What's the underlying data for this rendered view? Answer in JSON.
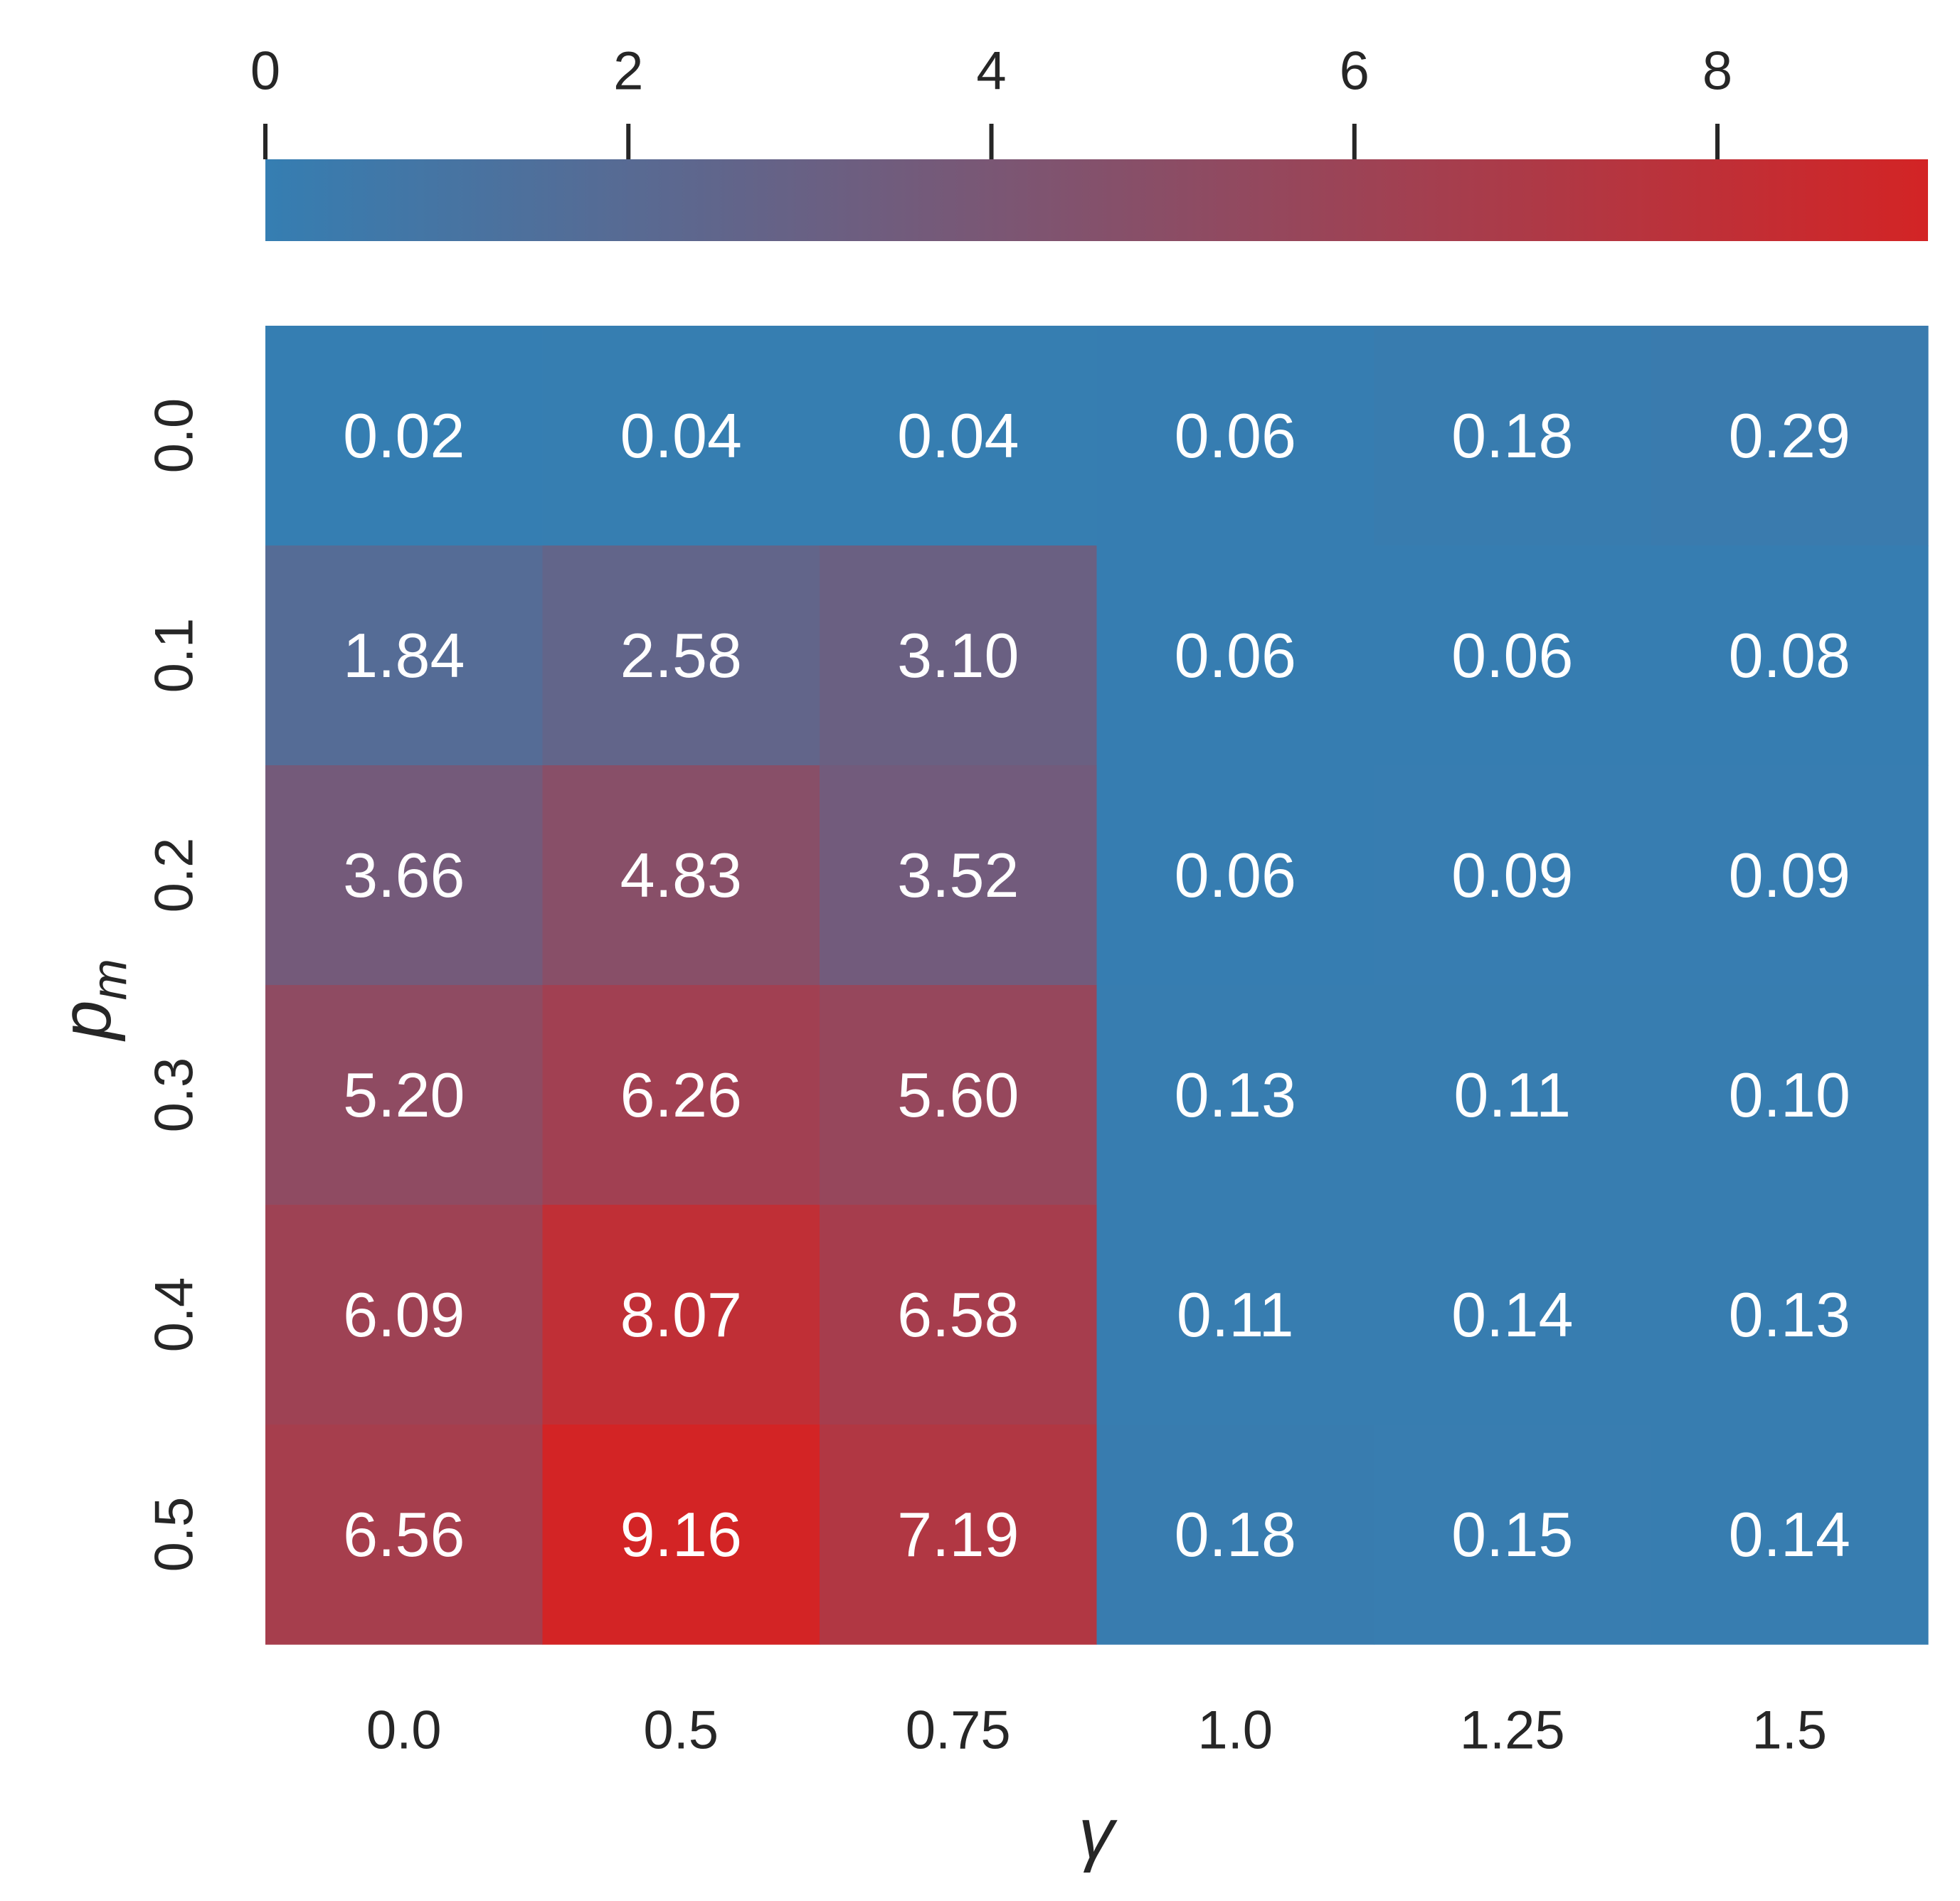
{
  "chart_data": {
    "type": "heatmap",
    "title": "",
    "xlabel": "γ",
    "ylabel_main": "p",
    "ylabel_sub": "m",
    "x_categories": [
      "0.0",
      "0.5",
      "0.75",
      "1.0",
      "1.25",
      "1.5"
    ],
    "y_categories": [
      "0.0",
      "0.1",
      "0.2",
      "0.3",
      "0.4",
      "0.5"
    ],
    "values": [
      [
        0.02,
        0.04,
        0.04,
        0.06,
        0.18,
        0.29
      ],
      [
        1.84,
        2.58,
        3.1,
        0.06,
        0.06,
        0.08
      ],
      [
        3.66,
        4.83,
        3.52,
        0.06,
        0.09,
        0.09
      ],
      [
        5.2,
        6.26,
        5.6,
        0.13,
        0.11,
        0.1
      ],
      [
        6.09,
        8.07,
        6.58,
        0.11,
        0.14,
        0.13
      ],
      [
        6.56,
        9.16,
        7.19,
        0.18,
        0.15,
        0.14
      ]
    ],
    "value_labels": [
      [
        "0.02",
        "0.04",
        "0.04",
        "0.06",
        "0.18",
        "0.29"
      ],
      [
        "1.84",
        "2.58",
        "3.10",
        "0.06",
        "0.06",
        "0.08"
      ],
      [
        "3.66",
        "4.83",
        "3.52",
        "0.06",
        "0.09",
        "0.09"
      ],
      [
        "5.20",
        "6.26",
        "5.60",
        "0.13",
        "0.11",
        "0.10"
      ],
      [
        "6.09",
        "8.07",
        "6.58",
        "0.11",
        "0.14",
        "0.13"
      ],
      [
        "6.56",
        "9.16",
        "7.19",
        "0.18",
        "0.15",
        "0.14"
      ]
    ],
    "colorbar": {
      "position": "top",
      "range": [
        0,
        9.16
      ],
      "ticks": [
        0,
        2,
        4,
        6,
        8
      ],
      "tick_labels": [
        "0",
        "2",
        "4",
        "6",
        "8"
      ],
      "color_low": "#357EB2",
      "color_high": "#D32425"
    },
    "grid": false
  }
}
